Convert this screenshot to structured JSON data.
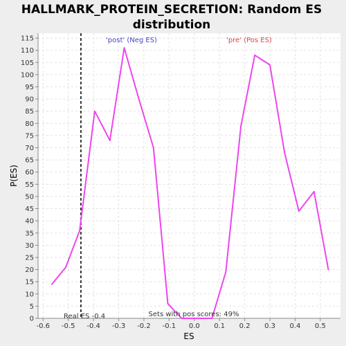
{
  "chart_data": {
    "type": "line",
    "title_lines": [
      "HALLMARK_PROTEIN_SECRETION: Random ES",
      "distribution"
    ],
    "xlabel": "ES",
    "ylabel": "P(ES)",
    "xlim": [
      -0.62,
      0.58
    ],
    "ylim": [
      0,
      117
    ],
    "xticks": [
      -0.6,
      -0.5,
      -0.4,
      -0.3,
      -0.2,
      -0.1,
      0.0,
      0.1,
      0.2,
      0.3,
      0.4,
      0.5
    ],
    "xtick_labels": [
      "-0.6",
      "-0.5",
      "-0.4",
      "-0.3",
      "-0.2",
      "-0.1",
      "0.0",
      "0.1",
      "0.2",
      "0.3",
      "0.4",
      "0.5"
    ],
    "yticks": [
      0,
      5,
      10,
      15,
      20,
      25,
      30,
      35,
      40,
      45,
      50,
      55,
      60,
      65,
      70,
      75,
      80,
      85,
      90,
      95,
      100,
      105,
      110,
      115
    ],
    "grid": true,
    "line_color": "#ee44ee",
    "series": [
      {
        "x": [
          -0.565,
          -0.51,
          -0.455,
          -0.395,
          -0.335,
          -0.278,
          -0.22,
          -0.162,
          -0.105,
          -0.05,
          0.01,
          0.07,
          0.125,
          0.185,
          0.24,
          0.3,
          0.358,
          0.415,
          0.475,
          0.532
        ],
        "values": [
          14,
          21,
          36,
          85,
          73,
          111,
          90,
          70,
          6,
          0,
          0,
          0,
          19,
          79,
          108,
          104,
          68,
          44,
          52,
          20
        ]
      }
    ],
    "real_es": {
      "x": -0.45,
      "label": "Real ES -0.4",
      "color": "#333333"
    },
    "annotations": {
      "post": {
        "text": "'post' (Neg ES)",
        "color": "#4444cc"
      },
      "pre": {
        "text": "'pre' (Pos ES)",
        "color": "#dd4444"
      },
      "pos_scores": {
        "text": "Sets with pos scores: 49%",
        "color": "#333333"
      }
    }
  }
}
